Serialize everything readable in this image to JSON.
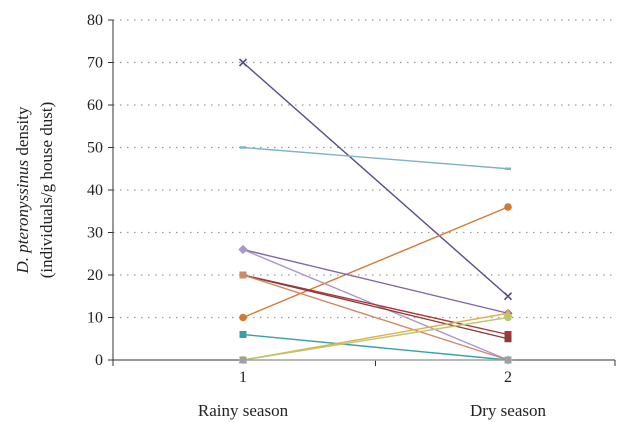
{
  "chart_data": {
    "type": "line",
    "x": [
      "1",
      "2"
    ],
    "x_category_labels": [
      "Rainy season",
      "Dry season"
    ],
    "ylabel_part1": "D. pteronyssinus",
    "ylabel_part2": " density",
    "ylabel_line2": "(individuals/g house dust)",
    "ylim": [
      0,
      80
    ],
    "yticks": [
      "0",
      "10",
      "20",
      "30",
      "40",
      "50",
      "60",
      "70",
      "80"
    ],
    "grid": "horizontal dotted",
    "series": [
      {
        "values": [
          70,
          15
        ],
        "color": "#5b4a8b",
        "marker": "x"
      },
      {
        "values": [
          50,
          45
        ],
        "color": "#7fb3c8",
        "marker": "dash"
      },
      {
        "values": [
          10,
          36
        ],
        "color": "#d07a35",
        "marker": "circle"
      },
      {
        "values": [
          26,
          11
        ],
        "color": "#8066a8",
        "marker": "diamond"
      },
      {
        "values": [
          26,
          0
        ],
        "color": "#a896cc",
        "marker": "diamond"
      },
      {
        "values": [
          20,
          6
        ],
        "color": "#a83838",
        "marker": "square"
      },
      {
        "values": [
          20,
          5
        ],
        "color": "#8c3a3a",
        "marker": "square"
      },
      {
        "values": [
          20,
          0
        ],
        "color": "#d08a6a",
        "marker": "square"
      },
      {
        "values": [
          6,
          0
        ],
        "color": "#35a0a8",
        "marker": "square"
      },
      {
        "values": [
          0,
          11
        ],
        "color": "#e0b050",
        "marker": "triangle"
      },
      {
        "values": [
          0,
          10
        ],
        "color": "#b8c870",
        "marker": "circle"
      },
      {
        "values": [
          0,
          0
        ],
        "color": "#a0a0a0",
        "marker": "square"
      }
    ]
  }
}
